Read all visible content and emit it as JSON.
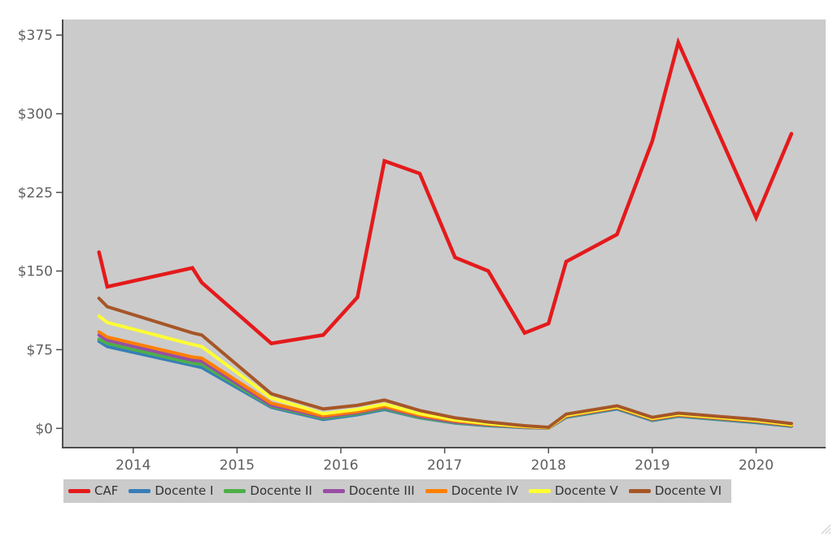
{
  "chart_data": {
    "type": "line",
    "title": "",
    "xlabel": "",
    "ylabel": "",
    "grid": false,
    "legend_position": "bottom-left",
    "x": [
      2013.67,
      2013.75,
      2014.57,
      2014.66,
      2015.33,
      2015.83,
      2016.16,
      2016.42,
      2016.76,
      2017.1,
      2017.42,
      2017.77,
      2018.0,
      2018.17,
      2018.66,
      2019.0,
      2019.25,
      2020.0,
      2020.34
    ],
    "series": [
      {
        "name": "CAF",
        "color": "#e41a1c",
        "values": [
          168,
          135,
          153,
          139,
          81,
          89,
          125,
          255,
          243,
          163,
          150,
          91,
          100,
          159,
          185,
          274,
          368,
          201,
          281
        ]
      },
      {
        "name": "Docente I",
        "color": "#377eb8",
        "values": [
          83,
          78,
          60,
          58,
          20,
          8.5,
          13,
          18,
          10,
          5,
          2.5,
          0.8,
          0.2,
          10.5,
          18.5,
          7.5,
          11.5,
          5.5,
          2
        ]
      },
      {
        "name": "Docente II",
        "color": "#4daf4a",
        "values": [
          85,
          81,
          62,
          61,
          21,
          9.7,
          14,
          19,
          10.5,
          5.5,
          3,
          1,
          0.3,
          11,
          19,
          8,
          12,
          6,
          2.3
        ]
      },
      {
        "name": "Docente III",
        "color": "#984ea3",
        "values": [
          89,
          84,
          65,
          64,
          22,
          10.8,
          15,
          20,
          11.5,
          6,
          3.5,
          1.2,
          0.4,
          11.5,
          19.5,
          8.5,
          12.5,
          6.5,
          2.7
        ]
      },
      {
        "name": "Docente IV",
        "color": "#ff7f00",
        "values": [
          92,
          87,
          68,
          67,
          24,
          12,
          16,
          21,
          12.5,
          7,
          4,
          1.5,
          0.5,
          12,
          20,
          9,
          13,
          7,
          3
        ]
      },
      {
        "name": "Docente V",
        "color": "#ffff33",
        "values": [
          107,
          101,
          80,
          78,
          29,
          14,
          18,
          23,
          14,
          8,
          4.5,
          1.8,
          0.7,
          12.5,
          20.5,
          9.5,
          13.5,
          7.5,
          3.5
        ]
      },
      {
        "name": "Docente VI",
        "color": "#a65628",
        "values": [
          124,
          116,
          91,
          89,
          33,
          18.5,
          22,
          27,
          17,
          10,
          6,
          2.5,
          1,
          13.5,
          21.5,
          10.5,
          14.5,
          8.5,
          4.5
        ]
      }
    ],
    "yticks": {
      "values": [
        0,
        75,
        150,
        225,
        300,
        375
      ],
      "labels": [
        "$0",
        "$75",
        "$150",
        "$225",
        "$300",
        "$375"
      ]
    },
    "xticks": {
      "values": [
        2014,
        2015,
        2016,
        2017,
        2018,
        2019,
        2020
      ],
      "labels": [
        "2014",
        "2015",
        "2016",
        "2017",
        "2018",
        "2019",
        "2020"
      ]
    },
    "xlim": [
      2013.32,
      2020.67
    ],
    "ylim": [
      -18.4,
      389.9
    ],
    "colors": {
      "page_bg": "#ffffff",
      "plot_bg": "#cbcbcb",
      "axis": "#4d4d4d",
      "tick_label": "#5f5f5f",
      "legend_bg": "#cbcbcb",
      "legend_text": "#333333",
      "resize_grip": "#d6d6d6"
    }
  }
}
